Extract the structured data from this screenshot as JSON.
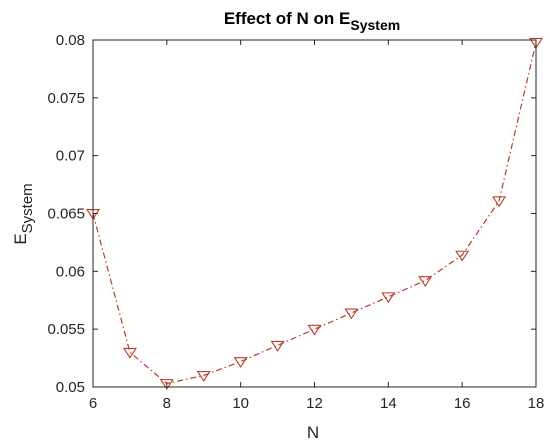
{
  "chart_data": {
    "type": "line",
    "title": {
      "text": "Effect of N on E",
      "subscript": "System"
    },
    "xlabel": "N",
    "ylabel": {
      "text": "E",
      "subscript": "System"
    },
    "xlim": [
      6,
      18
    ],
    "ylim": [
      0.05,
      0.08
    ],
    "xticks": [
      6,
      8,
      10,
      12,
      14,
      16,
      18
    ],
    "xtick_labels": [
      "6",
      "8",
      "10",
      "12",
      "14",
      "16",
      "18"
    ],
    "yticks": [
      0.05,
      0.055,
      0.06,
      0.065,
      0.07,
      0.075,
      0.08
    ],
    "ytick_labels": [
      "0.05",
      "0.055",
      "0.06",
      "0.065",
      "0.07",
      "0.075",
      "0.08"
    ],
    "grid": false,
    "series": [
      {
        "x": [
          6,
          7,
          8,
          9,
          10,
          11,
          12,
          13,
          14,
          15,
          16,
          17,
          18
        ],
        "y": [
          0.065,
          0.053,
          0.0503,
          0.051,
          0.0522,
          0.0536,
          0.055,
          0.0564,
          0.0578,
          0.0592,
          0.0614,
          0.0661,
          0.0798
        ],
        "color": "#c0392b",
        "line_style": "dash-dot",
        "marker": "down-triangle"
      }
    ]
  }
}
